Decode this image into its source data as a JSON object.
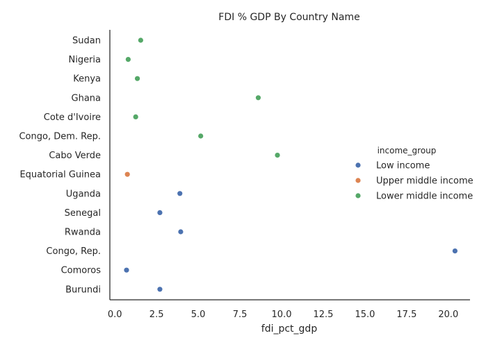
{
  "chart_data": {
    "type": "scatter",
    "title": "FDI % GDP By Country Name",
    "xlabel": "fdi_pct_gdp",
    "ylabel": "",
    "xlim": [
      -0.3,
      21.3
    ],
    "xticks": [
      0.0,
      2.5,
      5.0,
      7.5,
      10.0,
      12.5,
      15.0,
      17.5,
      20.0
    ],
    "xtick_labels": [
      "0.0",
      "2.5",
      "5.0",
      "7.5",
      "10.0",
      "12.5",
      "15.0",
      "17.5",
      "20.0"
    ],
    "categories": [
      "Sudan",
      "Nigeria",
      "Kenya",
      "Ghana",
      "Cote d'Ivoire",
      "Congo, Dem. Rep.",
      "Cabo Verde",
      "Equatorial Guinea",
      "Uganda",
      "Senegal",
      "Rwanda",
      "Congo, Rep.",
      "Comoros",
      "Burundi"
    ],
    "grid": false,
    "legend": {
      "title": "income_group",
      "placement": "center-right"
    },
    "series": [
      {
        "name": "Low income",
        "color": "#4c72b0",
        "points": [
          {
            "category": "Uganda",
            "x": 3.9
          },
          {
            "category": "Senegal",
            "x": 2.7
          },
          {
            "category": "Rwanda",
            "x": 3.95
          },
          {
            "category": "Congo, Rep.",
            "x": 20.4
          },
          {
            "category": "Comoros",
            "x": 0.7
          },
          {
            "category": "Burundi",
            "x": 2.7
          }
        ]
      },
      {
        "name": "Upper middle income",
        "color": "#dd8452",
        "points": [
          {
            "category": "Equatorial Guinea",
            "x": 0.75
          }
        ]
      },
      {
        "name": "Lower middle income",
        "color": "#55a868",
        "points": [
          {
            "category": "Sudan",
            "x": 1.55
          },
          {
            "category": "Nigeria",
            "x": 0.8
          },
          {
            "category": "Kenya",
            "x": 1.35
          },
          {
            "category": "Ghana",
            "x": 8.6
          },
          {
            "category": "Cote d'Ivoire",
            "x": 1.25
          },
          {
            "category": "Congo, Dem. Rep.",
            "x": 5.15
          },
          {
            "category": "Cabo Verde",
            "x": 9.75
          }
        ]
      }
    ]
  }
}
